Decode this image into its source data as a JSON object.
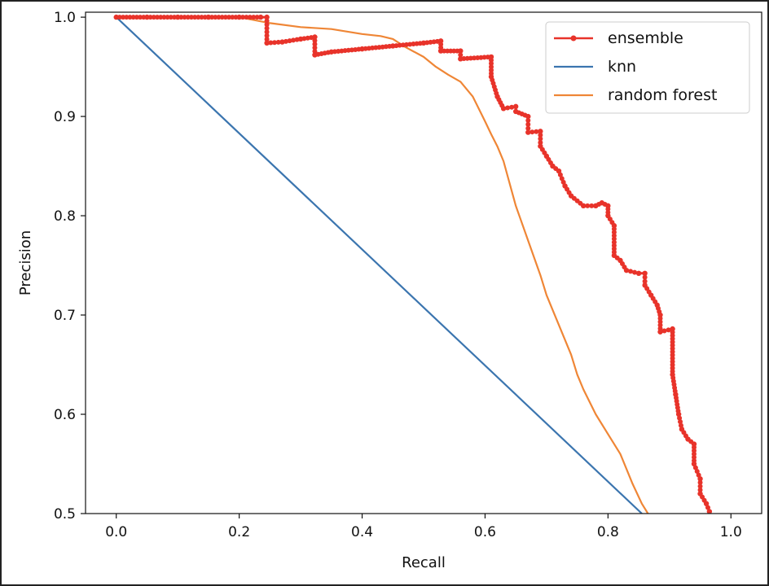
{
  "chart_data": {
    "type": "line",
    "title": "",
    "xlabel": "Recall",
    "ylabel": "Precision",
    "xlim": [
      -0.05,
      1.05
    ],
    "ylim": [
      0.5,
      1.005
    ],
    "xticks": [
      "0.0",
      "0.2",
      "0.4",
      "0.6",
      "0.8",
      "1.0"
    ],
    "yticks": [
      "0.5",
      "0.6",
      "0.7",
      "0.8",
      "0.9",
      "1.0"
    ],
    "legend_position": "top-right",
    "series": [
      {
        "name": "ensemble",
        "color": "#e8332a",
        "marker": "dot",
        "points": [
          [
            0.0,
            1.0
          ],
          [
            0.05,
            1.0
          ],
          [
            0.1,
            1.0
          ],
          [
            0.15,
            1.0
          ],
          [
            0.2,
            1.0
          ],
          [
            0.235,
            1.0
          ],
          [
            0.245,
            1.0
          ],
          [
            0.245,
            0.974
          ],
          [
            0.27,
            0.975
          ],
          [
            0.3,
            0.978
          ],
          [
            0.323,
            0.98
          ],
          [
            0.323,
            0.962
          ],
          [
            0.35,
            0.965
          ],
          [
            0.4,
            0.968
          ],
          [
            0.45,
            0.971
          ],
          [
            0.5,
            0.974
          ],
          [
            0.528,
            0.976
          ],
          [
            0.528,
            0.966
          ],
          [
            0.56,
            0.966
          ],
          [
            0.56,
            0.958
          ],
          [
            0.61,
            0.96
          ],
          [
            0.61,
            0.94
          ],
          [
            0.62,
            0.92
          ],
          [
            0.63,
            0.908
          ],
          [
            0.65,
            0.91
          ],
          [
            0.65,
            0.905
          ],
          [
            0.67,
            0.9
          ],
          [
            0.67,
            0.884
          ],
          [
            0.69,
            0.885
          ],
          [
            0.69,
            0.87
          ],
          [
            0.7,
            0.86
          ],
          [
            0.71,
            0.85
          ],
          [
            0.72,
            0.845
          ],
          [
            0.73,
            0.83
          ],
          [
            0.74,
            0.82
          ],
          [
            0.76,
            0.81
          ],
          [
            0.78,
            0.81
          ],
          [
            0.79,
            0.813
          ],
          [
            0.8,
            0.81
          ],
          [
            0.8,
            0.8
          ],
          [
            0.81,
            0.79
          ],
          [
            0.81,
            0.76
          ],
          [
            0.82,
            0.755
          ],
          [
            0.83,
            0.745
          ],
          [
            0.85,
            0.742
          ],
          [
            0.86,
            0.742
          ],
          [
            0.86,
            0.73
          ],
          [
            0.87,
            0.72
          ],
          [
            0.88,
            0.71
          ],
          [
            0.885,
            0.7
          ],
          [
            0.885,
            0.683
          ],
          [
            0.905,
            0.686
          ],
          [
            0.905,
            0.64
          ],
          [
            0.91,
            0.62
          ],
          [
            0.915,
            0.6
          ],
          [
            0.92,
            0.585
          ],
          [
            0.93,
            0.575
          ],
          [
            0.94,
            0.57
          ],
          [
            0.94,
            0.55
          ],
          [
            0.95,
            0.535
          ],
          [
            0.95,
            0.52
          ],
          [
            0.96,
            0.51
          ],
          [
            0.965,
            0.502
          ]
        ]
      },
      {
        "name": "knn",
        "color": "#3b75af",
        "marker": "none",
        "points": [
          [
            0.0,
            1.0
          ],
          [
            0.855,
            0.5
          ]
        ]
      },
      {
        "name": "random forest",
        "color": "#ef8636",
        "marker": "none",
        "points": [
          [
            0.0,
            1.0
          ],
          [
            0.1,
            1.0
          ],
          [
            0.2,
            1.0
          ],
          [
            0.25,
            0.994
          ],
          [
            0.3,
            0.99
          ],
          [
            0.35,
            0.988
          ],
          [
            0.4,
            0.983
          ],
          [
            0.43,
            0.981
          ],
          [
            0.45,
            0.978
          ],
          [
            0.47,
            0.97
          ],
          [
            0.5,
            0.96
          ],
          [
            0.52,
            0.95
          ],
          [
            0.54,
            0.942
          ],
          [
            0.56,
            0.935
          ],
          [
            0.58,
            0.92
          ],
          [
            0.6,
            0.895
          ],
          [
            0.61,
            0.882
          ],
          [
            0.62,
            0.87
          ],
          [
            0.63,
            0.855
          ],
          [
            0.65,
            0.81
          ],
          [
            0.67,
            0.775
          ],
          [
            0.69,
            0.74
          ],
          [
            0.7,
            0.72
          ],
          [
            0.72,
            0.69
          ],
          [
            0.74,
            0.66
          ],
          [
            0.75,
            0.64
          ],
          [
            0.76,
            0.625
          ],
          [
            0.78,
            0.6
          ],
          [
            0.8,
            0.58
          ],
          [
            0.82,
            0.56
          ],
          [
            0.84,
            0.53
          ],
          [
            0.855,
            0.51
          ],
          [
            0.865,
            0.5
          ]
        ]
      }
    ]
  }
}
